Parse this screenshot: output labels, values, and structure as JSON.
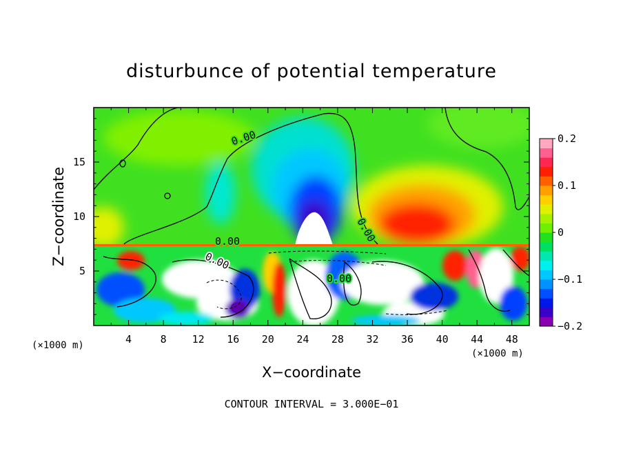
{
  "chart_data": {
    "type": "heatmap",
    "title": "disturbunce of potential temperature",
    "xlabel": "X−coordinate",
    "ylabel": "Z−coordinate",
    "x_unit": "(×1000 m)",
    "y_unit": "(×1000 m)",
    "xlim": [
      0,
      50
    ],
    "ylim": [
      0,
      20
    ],
    "x_ticks": [
      "4",
      "8",
      "12",
      "16",
      "20",
      "24",
      "28",
      "32",
      "36",
      "40",
      "44",
      "48"
    ],
    "y_ticks": [
      "5",
      "10",
      "15"
    ],
    "colorbar": {
      "min": -0.2,
      "max": 0.2,
      "tick_labels": [
        "0.2",
        "0.1",
        "0",
        "−0.1",
        "−0.2"
      ],
      "colors": [
        "#8b00b0",
        "#3a00c8",
        "#0018e8",
        "#0050ff",
        "#0090ff",
        "#00c8ff",
        "#00f0f0",
        "#00e8b0",
        "#00e060",
        "#20e020",
        "#70f000",
        "#a8f000",
        "#e0f000",
        "#ffd000",
        "#ffa000",
        "#ff6000",
        "#ff2000",
        "#ff2850",
        "#ff6090",
        "#ffa8c0"
      ]
    },
    "contour_labels": [
      "0.00",
      "0.00",
      "0.00",
      "0.00",
      "0.00"
    ],
    "footer": "CONTOUR INTERVAL = 3.000E−01",
    "grid": false
  }
}
